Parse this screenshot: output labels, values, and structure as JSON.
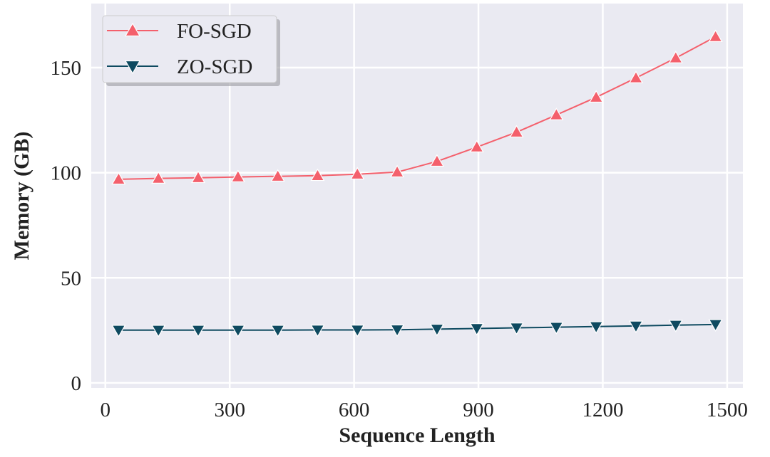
{
  "chart_data": {
    "type": "line",
    "title": "",
    "xlabel": "Sequence Length",
    "ylabel": "Memory (GB)",
    "xlim": [
      -34,
      1538
    ],
    "ylim": [
      -2.4,
      180.5
    ],
    "xticks": [
      0,
      300,
      600,
      900,
      1200,
      1500
    ],
    "yticks": [
      0,
      50,
      100,
      150
    ],
    "grid": true,
    "legend_position": "top-left",
    "background": "#eaeaf2",
    "x": [
      32,
      128,
      224,
      320,
      416,
      512,
      608,
      704,
      800,
      896,
      992,
      1088,
      1184,
      1280,
      1376,
      1472
    ],
    "series": [
      {
        "name": "FO-SGD",
        "color": "#f4606c",
        "marker": "triangle-up",
        "values": [
          96.9,
          97.3,
          97.6,
          98.0,
          98.3,
          98.6,
          99.3,
          100.3,
          105.4,
          112.2,
          119.3,
          127.5,
          135.9,
          145.1,
          154.6,
          164.7
        ]
      },
      {
        "name": "ZO-SGD",
        "color": "#0e4a60",
        "marker": "triangle-down",
        "values": [
          25.1,
          25.1,
          25.1,
          25.1,
          25.1,
          25.2,
          25.2,
          25.3,
          25.6,
          25.9,
          26.2,
          26.5,
          26.8,
          27.1,
          27.5,
          27.8
        ]
      }
    ]
  }
}
